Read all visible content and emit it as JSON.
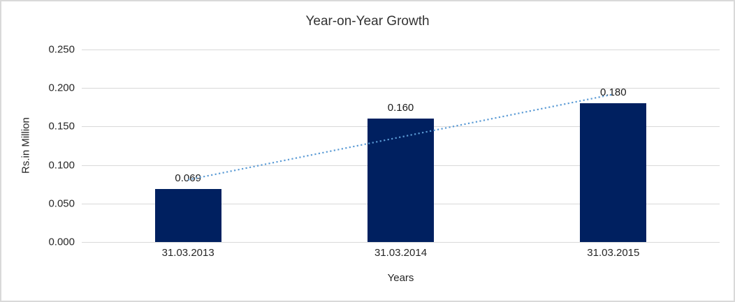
{
  "chart_data": {
    "type": "bar",
    "title": "Year-on-Year Growth",
    "xlabel": "Years",
    "ylabel": "Rs.in Million",
    "categories": [
      "31.03.2013",
      "31.03.2014",
      "31.03.2015"
    ],
    "values": [
      0.069,
      0.16,
      0.18
    ],
    "data_labels": [
      "0.069",
      "0.160",
      "0.180"
    ],
    "ylim": [
      0,
      0.25
    ],
    "ytick_step": 0.05,
    "ytick_labels_top_to_bottom": [
      "0.250",
      "0.200",
      "0.150",
      "0.100",
      "0.050",
      "0.000"
    ],
    "grid": true,
    "legend": false,
    "trendline": {
      "type": "linear",
      "style": "dotted"
    }
  },
  "colors": {
    "bar": "#002060",
    "trendline": "#5B9BD5",
    "gridline": "#D9D9D9",
    "border": "#D9D9D9",
    "text": "#262626",
    "title_text": "#333333"
  }
}
